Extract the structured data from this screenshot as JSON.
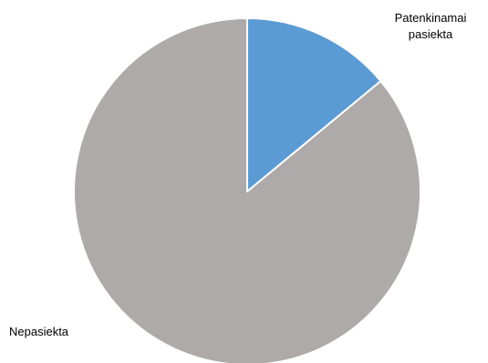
{
  "chart_data": {
    "type": "pie",
    "title": "",
    "start_angle_deg": 0,
    "direction": "clockwise",
    "legend": "none",
    "slices": [
      {
        "label": [
          "Patenkinamai",
          "pasiekta"
        ],
        "value": 14,
        "color": "#5b9bd5"
      },
      {
        "label": [
          "Nepasiekta"
        ],
        "value": 86,
        "color": "#aeaaaa"
      }
    ]
  }
}
